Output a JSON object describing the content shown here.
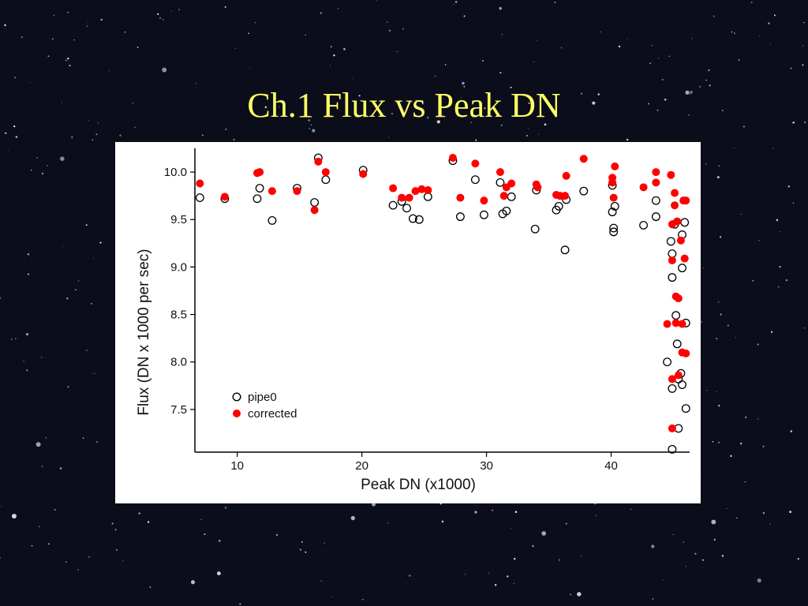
{
  "slide": {
    "title": "Ch.1 Flux vs Peak DN"
  },
  "colors": {
    "background": "#0b0d1a",
    "title": "#ffff66",
    "corrected": "#ff0000",
    "pipe0": "#000000"
  },
  "chart_data": {
    "type": "scatter",
    "title": "",
    "xlabel": "Peak DN (x1000)",
    "ylabel": "Flux (DN x 1000 per sec)",
    "xlim": [
      6.6,
      46.3
    ],
    "ylim": [
      7.05,
      10.25
    ],
    "xticks": [
      10,
      20,
      30,
      40
    ],
    "yticks": [
      7.5,
      8.0,
      8.5,
      9.0,
      9.5,
      10.0
    ],
    "grid": false,
    "legend_position": "bottom-left",
    "series": [
      {
        "name": "pipe0",
        "marker": "open-circle",
        "color": "#000000",
        "points": [
          [
            7.0,
            9.73
          ],
          [
            9.0,
            9.72
          ],
          [
            11.6,
            9.72
          ],
          [
            11.8,
            9.83
          ],
          [
            12.8,
            9.49
          ],
          [
            14.8,
            9.83
          ],
          [
            16.2,
            9.68
          ],
          [
            16.5,
            10.15
          ],
          [
            17.1,
            9.92
          ],
          [
            20.1,
            10.02
          ],
          [
            22.5,
            9.65
          ],
          [
            23.2,
            9.69
          ],
          [
            23.6,
            9.62
          ],
          [
            24.1,
            9.51
          ],
          [
            24.6,
            9.5
          ],
          [
            25.3,
            9.74
          ],
          [
            27.3,
            10.12
          ],
          [
            27.9,
            9.53
          ],
          [
            29.1,
            9.92
          ],
          [
            29.8,
            9.55
          ],
          [
            31.1,
            9.89
          ],
          [
            31.3,
            9.56
          ],
          [
            31.6,
            9.59
          ],
          [
            32.0,
            9.74
          ],
          [
            33.9,
            9.4
          ],
          [
            34.0,
            9.81
          ],
          [
            35.6,
            9.6
          ],
          [
            35.8,
            9.64
          ],
          [
            36.3,
            9.18
          ],
          [
            36.4,
            9.71
          ],
          [
            37.8,
            9.8
          ],
          [
            40.1,
            9.86
          ],
          [
            40.1,
            9.58
          ],
          [
            40.2,
            9.41
          ],
          [
            40.2,
            9.37
          ],
          [
            40.3,
            9.64
          ],
          [
            42.6,
            9.44
          ],
          [
            43.6,
            9.7
          ],
          [
            43.6,
            9.53
          ],
          [
            44.5,
            8.0
          ],
          [
            44.8,
            9.27
          ],
          [
            44.9,
            9.14
          ],
          [
            44.9,
            8.89
          ],
          [
            44.9,
            7.72
          ],
          [
            44.9,
            7.08
          ],
          [
            45.1,
            9.45
          ],
          [
            45.2,
            8.49
          ],
          [
            45.3,
            8.19
          ],
          [
            45.4,
            7.82
          ],
          [
            45.4,
            7.3
          ],
          [
            45.6,
            7.88
          ],
          [
            45.7,
            9.34
          ],
          [
            45.7,
            8.99
          ],
          [
            45.7,
            7.76
          ],
          [
            45.9,
            9.47
          ],
          [
            46.0,
            8.41
          ],
          [
            46.0,
            7.51
          ]
        ]
      },
      {
        "name": "corrected",
        "marker": "filled-circle",
        "color": "#ff0000",
        "points": [
          [
            7.0,
            9.88
          ],
          [
            9.0,
            9.74
          ],
          [
            11.6,
            9.99
          ],
          [
            11.8,
            10.0
          ],
          [
            12.8,
            9.8
          ],
          [
            14.8,
            9.8
          ],
          [
            16.2,
            9.6
          ],
          [
            16.5,
            10.11
          ],
          [
            17.1,
            10.0
          ],
          [
            20.1,
            9.98
          ],
          [
            22.5,
            9.83
          ],
          [
            23.2,
            9.73
          ],
          [
            23.8,
            9.73
          ],
          [
            24.3,
            9.8
          ],
          [
            24.8,
            9.82
          ],
          [
            25.3,
            9.81
          ],
          [
            27.3,
            10.15
          ],
          [
            27.9,
            9.73
          ],
          [
            29.1,
            10.09
          ],
          [
            29.8,
            9.7
          ],
          [
            31.1,
            10.0
          ],
          [
            31.4,
            9.75
          ],
          [
            31.6,
            9.84
          ],
          [
            32.0,
            9.88
          ],
          [
            34.0,
            9.87
          ],
          [
            34.1,
            9.84
          ],
          [
            35.6,
            9.76
          ],
          [
            35.9,
            9.75
          ],
          [
            36.3,
            9.75
          ],
          [
            36.4,
            9.96
          ],
          [
            37.8,
            10.14
          ],
          [
            40.1,
            9.94
          ],
          [
            40.1,
            9.89
          ],
          [
            40.2,
            9.73
          ],
          [
            40.3,
            10.06
          ],
          [
            42.6,
            9.84
          ],
          [
            43.6,
            10.0
          ],
          [
            43.6,
            9.89
          ],
          [
            44.5,
            8.4
          ],
          [
            44.8,
            9.97
          ],
          [
            44.9,
            9.45
          ],
          [
            44.9,
            9.07
          ],
          [
            44.9,
            7.82
          ],
          [
            44.9,
            7.3
          ],
          [
            45.1,
            9.78
          ],
          [
            45.1,
            9.65
          ],
          [
            45.2,
            8.69
          ],
          [
            45.2,
            8.41
          ],
          [
            45.3,
            9.48
          ],
          [
            45.4,
            8.67
          ],
          [
            45.4,
            7.86
          ],
          [
            45.6,
            9.28
          ],
          [
            45.7,
            8.4
          ],
          [
            45.7,
            8.1
          ],
          [
            45.8,
            9.7
          ],
          [
            45.9,
            9.09
          ],
          [
            46.0,
            8.09
          ],
          [
            46.0,
            9.7
          ]
        ]
      }
    ]
  }
}
